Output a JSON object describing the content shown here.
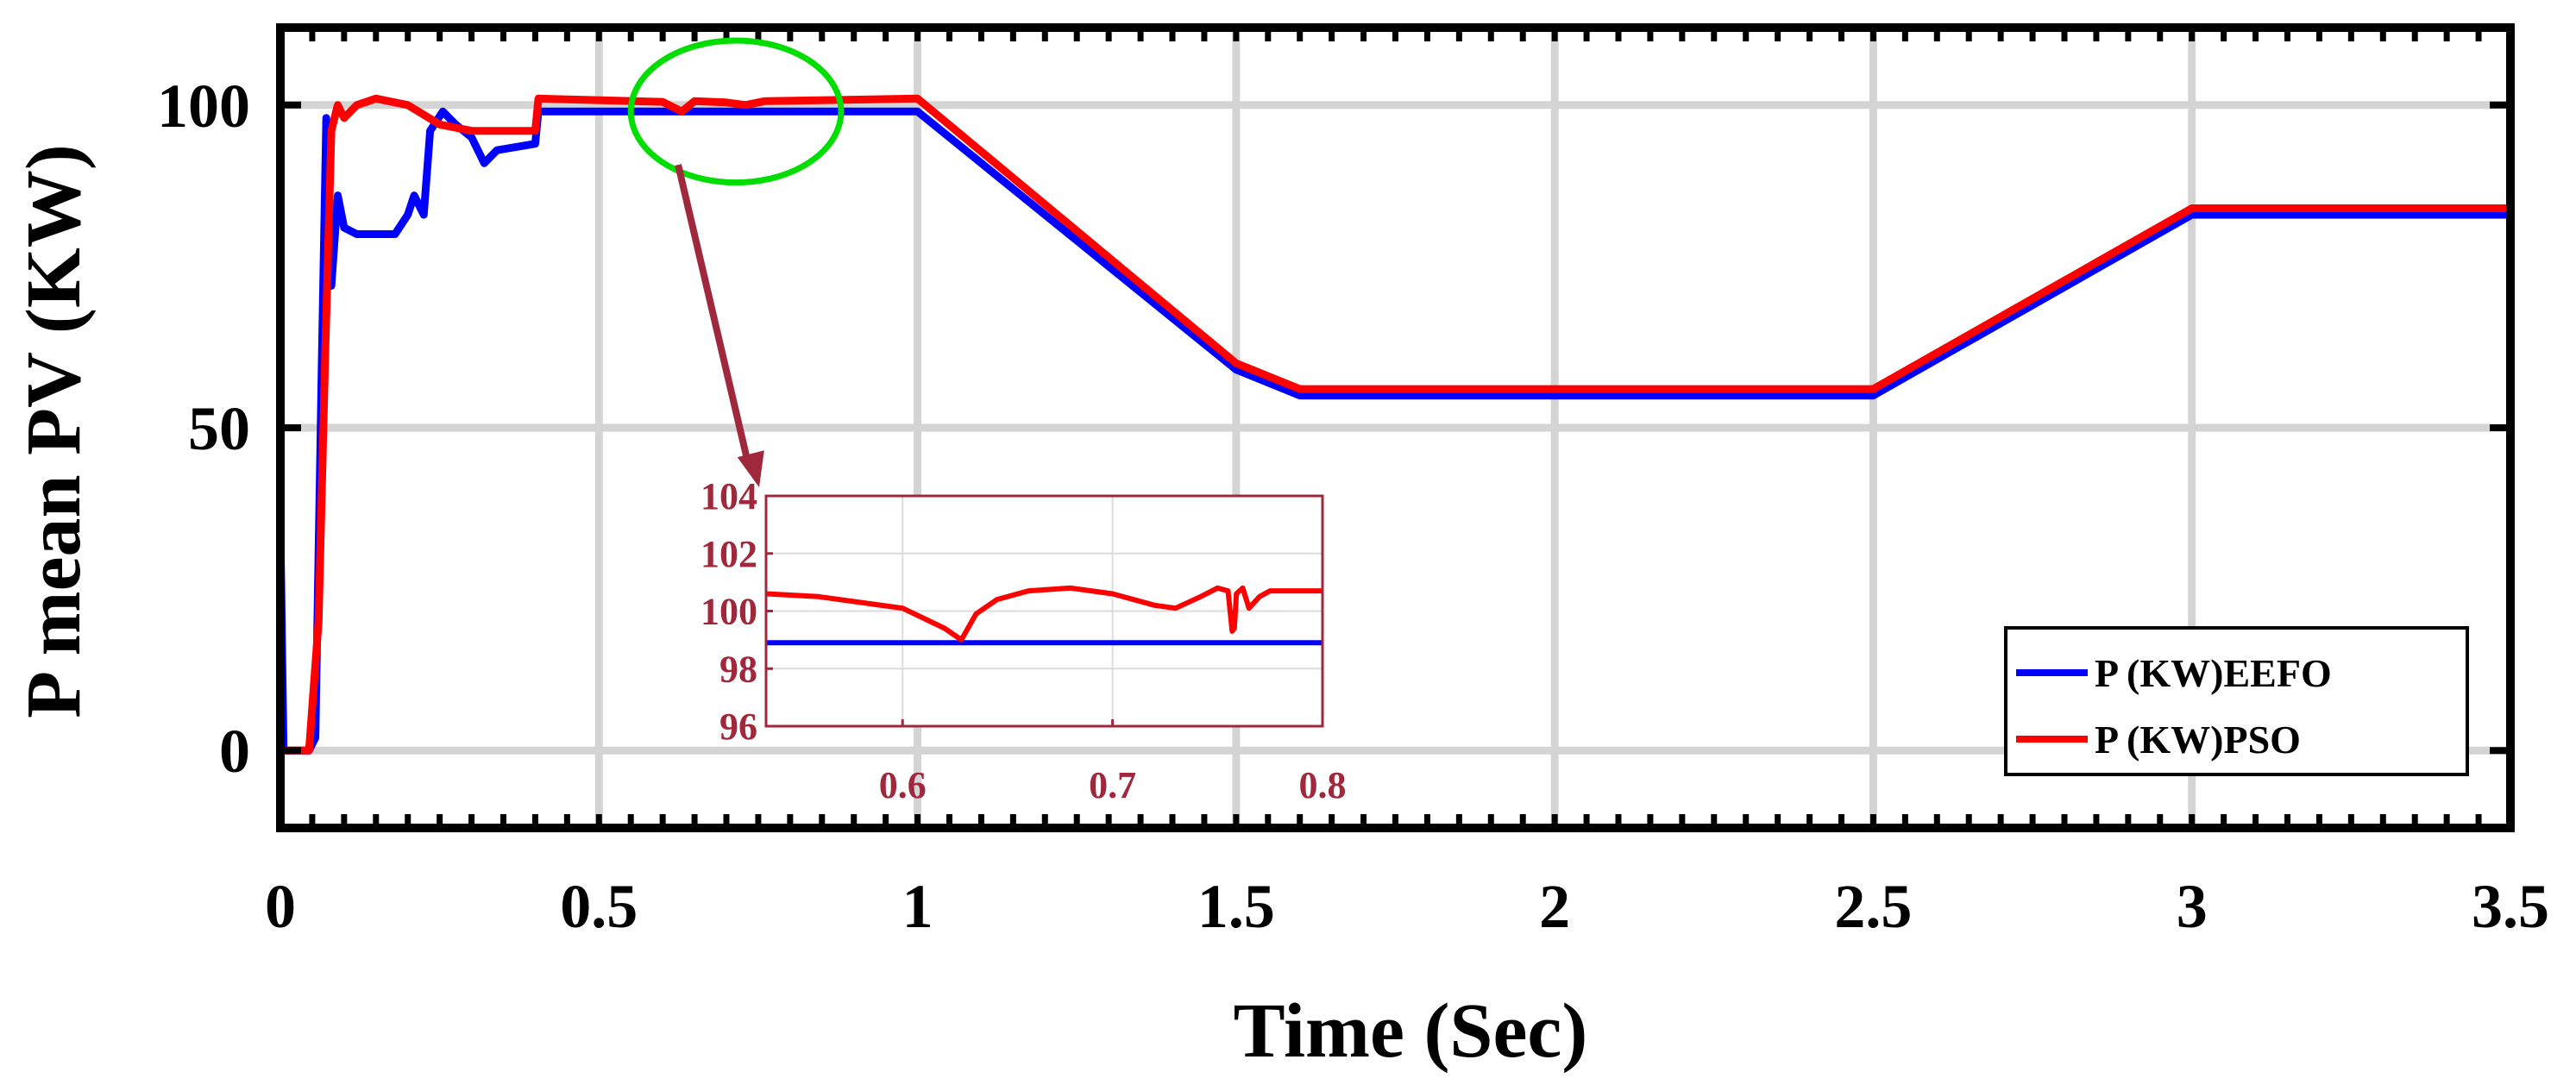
{
  "chart_data": [
    {
      "type": "line",
      "xlabel": "Time (Sec)",
      "ylabel": "P mean PV  (KW)",
      "xlim": [
        0,
        3.5
      ],
      "ylim": [
        -12,
        112
      ],
      "xticks": [
        0,
        0.5,
        1,
        1.5,
        2,
        2.5,
        3,
        3.5
      ],
      "xtick_labels": [
        "0",
        "0.5",
        "1",
        "1.5",
        "2",
        "2.5",
        "3",
        "3.5"
      ],
      "yticks": [
        0,
        50,
        100
      ],
      "ytick_labels": [
        "0",
        "50",
        "100"
      ],
      "grid": true,
      "legend_position": "lower-right",
      "series": [
        {
          "name": "P (KW)EEFO",
          "color": "#0000ff",
          "points": [
            [
              0,
              35
            ],
            [
              0.005,
              0
            ],
            [
              0.045,
              0
            ],
            [
              0.055,
              2
            ],
            [
              0.065,
              60
            ],
            [
              0.072,
              98
            ],
            [
              0.08,
              72
            ],
            [
              0.09,
              86
            ],
            [
              0.1,
              81
            ],
            [
              0.12,
              80
            ],
            [
              0.18,
              80
            ],
            [
              0.2,
              83
            ],
            [
              0.21,
              86
            ],
            [
              0.225,
              83
            ],
            [
              0.235,
              96
            ],
            [
              0.255,
              99
            ],
            [
              0.275,
              97
            ],
            [
              0.3,
              95
            ],
            [
              0.32,
              91
            ],
            [
              0.34,
              93
            ],
            [
              0.4,
              94
            ],
            [
              0.405,
              99
            ],
            [
              1.0,
              99
            ],
            [
              1.5,
              59
            ],
            [
              1.6,
              55
            ],
            [
              2.5,
              55
            ],
            [
              3.0,
              83
            ],
            [
              3.5,
              83
            ]
          ]
        },
        {
          "name": "P (KW)PSO",
          "color": "#ff0000",
          "points": [
            [
              0,
              0
            ],
            [
              0.045,
              0
            ],
            [
              0.06,
              20
            ],
            [
              0.07,
              60
            ],
            [
              0.08,
              96
            ],
            [
              0.09,
              100
            ],
            [
              0.1,
              98
            ],
            [
              0.12,
              100
            ],
            [
              0.15,
              101
            ],
            [
              0.2,
              100
            ],
            [
              0.25,
              97
            ],
            [
              0.3,
              96
            ],
            [
              0.4,
              96
            ],
            [
              0.405,
              101
            ],
            [
              0.6,
              100.5
            ],
            [
              0.63,
              99
            ],
            [
              0.65,
              100.6
            ],
            [
              0.7,
              100.4
            ],
            [
              0.73,
              100
            ],
            [
              0.76,
              100.6
            ],
            [
              1.0,
              101
            ],
            [
              1.5,
              60
            ],
            [
              1.6,
              56
            ],
            [
              2.5,
              56
            ],
            [
              3.0,
              84
            ],
            [
              3.5,
              84
            ]
          ]
        }
      ]
    },
    {
      "type": "line",
      "role": "inset",
      "xlim": [
        0.535,
        0.8
      ],
      "ylim": [
        96,
        104
      ],
      "xticks": [
        0.6,
        0.7,
        0.8
      ],
      "xtick_labels": [
        "0.6",
        "0.7",
        "0.8"
      ],
      "yticks": [
        96,
        98,
        100,
        102,
        104
      ],
      "ytick_labels": [
        "96",
        "98",
        "100",
        "102",
        "104"
      ],
      "grid": true,
      "tick_color": "#a0283c",
      "series": [
        {
          "name": "P (KW)EEFO",
          "color": "#0000ff",
          "points": [
            [
              0.535,
              98.9
            ],
            [
              0.8,
              98.9
            ]
          ]
        },
        {
          "name": "P (KW)PSO",
          "color": "#ff0000",
          "points": [
            [
              0.535,
              100.6
            ],
            [
              0.56,
              100.5
            ],
            [
              0.6,
              100.1
            ],
            [
              0.62,
              99.4
            ],
            [
              0.628,
              99.0
            ],
            [
              0.635,
              99.9
            ],
            [
              0.645,
              100.4
            ],
            [
              0.66,
              100.7
            ],
            [
              0.68,
              100.8
            ],
            [
              0.7,
              100.6
            ],
            [
              0.72,
              100.2
            ],
            [
              0.73,
              100.1
            ],
            [
              0.742,
              100.5
            ],
            [
              0.75,
              100.8
            ],
            [
              0.755,
              100.7
            ],
            [
              0.757,
              99.3
            ],
            [
              0.758,
              99.4
            ],
            [
              0.759,
              100.6
            ],
            [
              0.762,
              100.8
            ],
            [
              0.765,
              100.1
            ],
            [
              0.77,
              100.5
            ],
            [
              0.775,
              100.7
            ],
            [
              0.8,
              100.7
            ]
          ]
        }
      ]
    }
  ],
  "annotations": {
    "zoom_ellipse_color": "#00dd00",
    "zoom_arrow_color": "#a0283c",
    "zoom_region_x": [
      0.55,
      0.88
    ],
    "zoom_region_y": [
      88,
      110
    ]
  }
}
